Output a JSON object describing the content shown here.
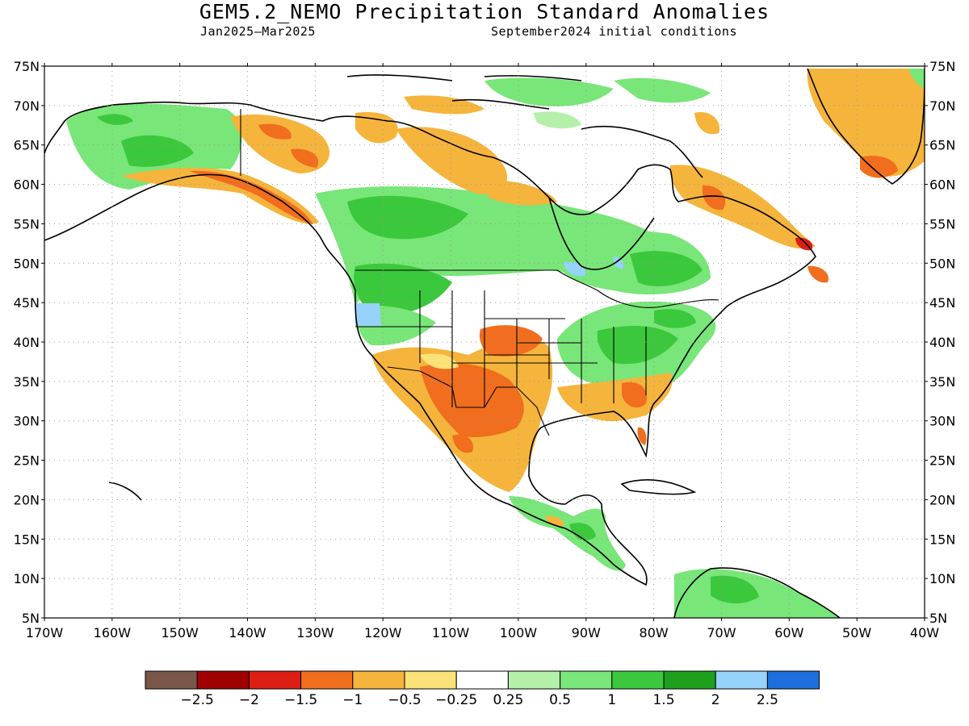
{
  "header": {
    "title": "GEM5.2_NEMO Precipitation Standard Anomalies",
    "period": "Jan2025–Mar2025",
    "init": "September2024 initial conditions"
  },
  "map": {
    "lat_labels": [
      "75N",
      "70N",
      "65N",
      "60N",
      "55N",
      "50N",
      "45N",
      "40N",
      "35N",
      "30N",
      "25N",
      "20N",
      "15N",
      "10N",
      "5N"
    ],
    "lon_labels": [
      "170W",
      "160W",
      "150W",
      "140W",
      "130W",
      "120W",
      "110W",
      "100W",
      "90W",
      "80W",
      "70W",
      "60W",
      "50W",
      "40W"
    ],
    "lon_range": [
      -170,
      -40
    ],
    "lat_range": [
      5,
      75
    ],
    "grid": "dotted"
  },
  "colorbar": {
    "colors": [
      "#7a5648",
      "#a00000",
      "#dc1e14",
      "#f06e1e",
      "#f5b43c",
      "#fae178",
      "#ffffff",
      "#b4f0aa",
      "#78e678",
      "#3cc83c",
      "#1ea01e",
      "#96d2fa",
      "#1e6edc"
    ],
    "labels": [
      "−2.5",
      "−2",
      "−1.5",
      "−1",
      "−0.5",
      "−0.25",
      "0.25",
      "0.5",
      "1",
      "1.5",
      "2",
      "2.5"
    ]
  }
}
